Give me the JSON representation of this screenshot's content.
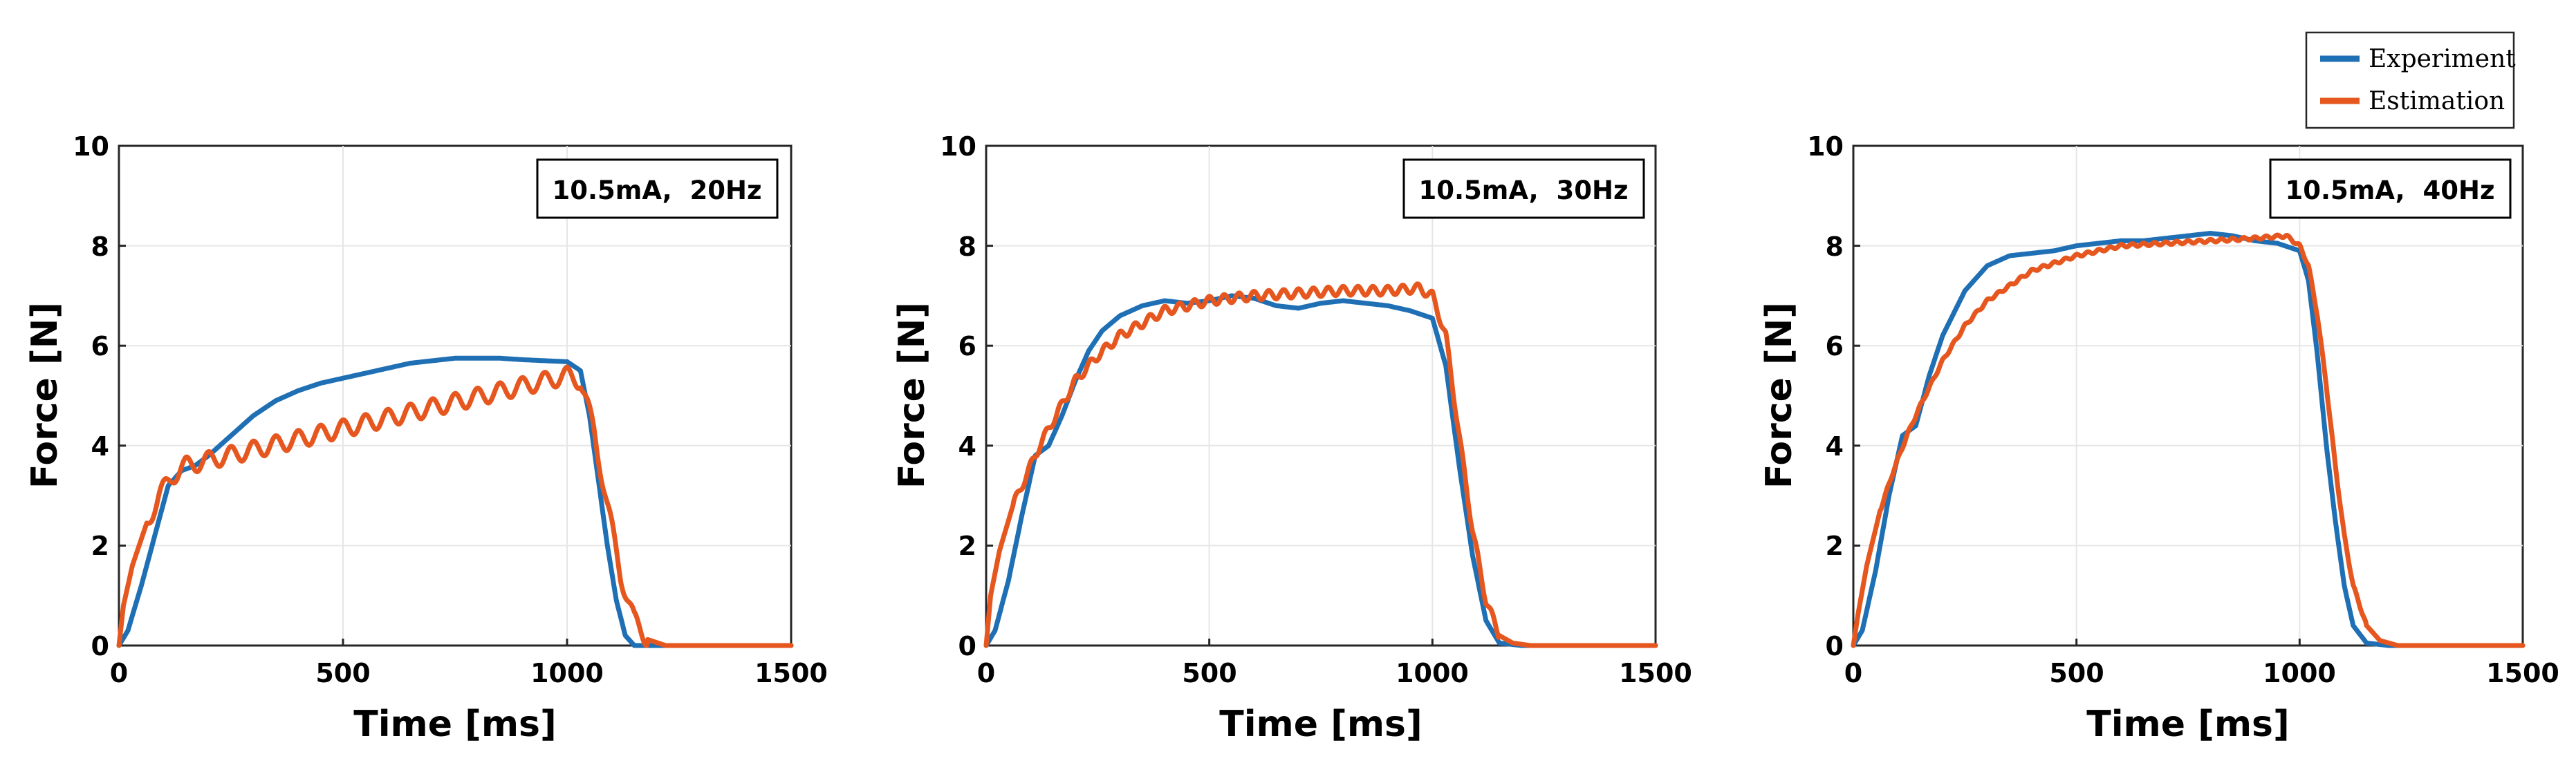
{
  "legend": {
    "entries": [
      {
        "name": "Experiment",
        "color": "#1f6fb4"
      },
      {
        "name": "Estimation",
        "color": "#e6571f"
      }
    ]
  },
  "chart_data": [
    {
      "type": "line",
      "annotation": "10.5mA,  20Hz",
      "xlabel": "Time [ms]",
      "ylabel": "Force [N]",
      "xlim": [
        0,
        1500
      ],
      "ylim": [
        0,
        10
      ],
      "xticks": [
        0,
        500,
        1000,
        1500
      ],
      "yticks": [
        0,
        2,
        4,
        6,
        8,
        10
      ],
      "grid": true,
      "series": [
        {
          "name": "Experiment",
          "color": "#1f6fb4",
          "x": [
            0,
            20,
            50,
            80,
            110,
            140,
            170,
            200,
            250,
            300,
            350,
            400,
            450,
            500,
            550,
            600,
            650,
            700,
            750,
            800,
            850,
            900,
            950,
            1000,
            1030,
            1050,
            1070,
            1090,
            1110,
            1130,
            1150,
            1200,
            1300,
            1500
          ],
          "y": [
            0,
            0.3,
            1.2,
            2.2,
            3.2,
            3.5,
            3.6,
            3.8,
            4.2,
            4.6,
            4.9,
            5.1,
            5.25,
            5.35,
            5.45,
            5.55,
            5.65,
            5.7,
            5.75,
            5.75,
            5.75,
            5.72,
            5.7,
            5.68,
            5.5,
            4.6,
            3.3,
            2.0,
            0.9,
            0.2,
            0,
            0,
            0,
            0
          ]
        },
        {
          "name": "Estimation",
          "color": "#e6571f",
          "x": [
            0,
            10,
            30,
            60,
            90,
            120,
            150,
            1000,
            1030,
            1060,
            1090,
            1120,
            1150,
            1180,
            1220,
            1300,
            1500
          ],
          "y": [
            0,
            0.8,
            1.6,
            2.4,
            3.0,
            3.4,
            3.6,
            5.4,
            5.3,
            4.3,
            2.8,
            1.4,
            0.5,
            0.12,
            0,
            0,
            0
          ],
          "ripple_hz": 20,
          "ripple_amplitude": 0.35
        }
      ]
    },
    {
      "type": "line",
      "annotation": "10.5mA,  30Hz",
      "xlabel": "Time [ms]",
      "ylabel": "Force [N]",
      "xlim": [
        0,
        1500
      ],
      "ylim": [
        0,
        10
      ],
      "xticks": [
        0,
        500,
        1000,
        1500
      ],
      "yticks": [
        0,
        2,
        4,
        6,
        8,
        10
      ],
      "grid": true,
      "series": [
        {
          "name": "Experiment",
          "color": "#1f6fb4",
          "x": [
            0,
            20,
            50,
            80,
            110,
            140,
            170,
            200,
            230,
            260,
            300,
            350,
            400,
            450,
            500,
            550,
            600,
            650,
            700,
            750,
            800,
            850,
            900,
            950,
            1000,
            1030,
            1060,
            1090,
            1120,
            1150,
            1200,
            1500
          ],
          "y": [
            0,
            0.3,
            1.3,
            2.6,
            3.8,
            4.0,
            4.6,
            5.3,
            5.9,
            6.3,
            6.6,
            6.8,
            6.9,
            6.85,
            6.9,
            7.0,
            6.95,
            6.8,
            6.75,
            6.85,
            6.9,
            6.85,
            6.8,
            6.7,
            6.55,
            5.6,
            3.6,
            1.8,
            0.5,
            0.05,
            0,
            0
          ]
        },
        {
          "name": "Estimation",
          "color": "#e6571f",
          "x": [
            0,
            10,
            30,
            60,
            90,
            120,
            150,
            200,
            250,
            300,
            400,
            500,
            600,
            700,
            800,
            900,
            970,
            1000,
            1030,
            1060,
            1090,
            1120,
            1150,
            1180,
            1220,
            1500
          ],
          "y": [
            0,
            1.0,
            1.9,
            2.8,
            3.4,
            4.0,
            4.5,
            5.3,
            5.8,
            6.2,
            6.7,
            6.9,
            7.0,
            7.05,
            7.1,
            7.1,
            7.15,
            7.0,
            6.2,
            4.2,
            2.3,
            0.9,
            0.2,
            0.05,
            0,
            0
          ],
          "ripple_hz": 30,
          "ripple_amplitude": 0.18
        }
      ]
    },
    {
      "type": "line",
      "annotation": "10.5mA,  40Hz",
      "xlabel": "Time [ms]",
      "ylabel": "Force [N]",
      "xlim": [
        0,
        1500
      ],
      "ylim": [
        0,
        10
      ],
      "xticks": [
        0,
        500,
        1000,
        1500
      ],
      "yticks": [
        0,
        2,
        4,
        6,
        8,
        10
      ],
      "grid": true,
      "series": [
        {
          "name": "Experiment",
          "color": "#1f6fb4",
          "x": [
            0,
            20,
            50,
            80,
            110,
            140,
            170,
            200,
            250,
            300,
            350,
            400,
            450,
            500,
            550,
            600,
            650,
            700,
            750,
            800,
            850,
            900,
            950,
            1000,
            1020,
            1040,
            1060,
            1080,
            1100,
            1120,
            1150,
            1200,
            1500
          ],
          "y": [
            0,
            0.3,
            1.5,
            3.0,
            4.2,
            4.4,
            5.4,
            6.2,
            7.1,
            7.6,
            7.8,
            7.85,
            7.9,
            8.0,
            8.05,
            8.1,
            8.1,
            8.15,
            8.2,
            8.25,
            8.2,
            8.1,
            8.05,
            7.9,
            7.3,
            5.8,
            4.0,
            2.5,
            1.2,
            0.4,
            0.05,
            0,
            0
          ]
        },
        {
          "name": "Estimation",
          "color": "#e6571f",
          "x": [
            0,
            10,
            30,
            60,
            90,
            120,
            150,
            200,
            250,
            300,
            350,
            400,
            500,
            600,
            700,
            800,
            900,
            970,
            1000,
            1020,
            1040,
            1060,
            1080,
            1100,
            1120,
            1150,
            1180,
            1220,
            1500
          ],
          "y": [
            0,
            0.6,
            1.6,
            2.7,
            3.5,
            4.2,
            4.8,
            5.7,
            6.4,
            6.9,
            7.2,
            7.5,
            7.8,
            8.0,
            8.05,
            8.1,
            8.15,
            8.2,
            8.0,
            7.6,
            6.6,
            5.2,
            3.6,
            2.2,
            1.2,
            0.4,
            0.1,
            0,
            0
          ],
          "ripple_hz": 40,
          "ripple_amplitude": 0.06
        }
      ]
    }
  ]
}
